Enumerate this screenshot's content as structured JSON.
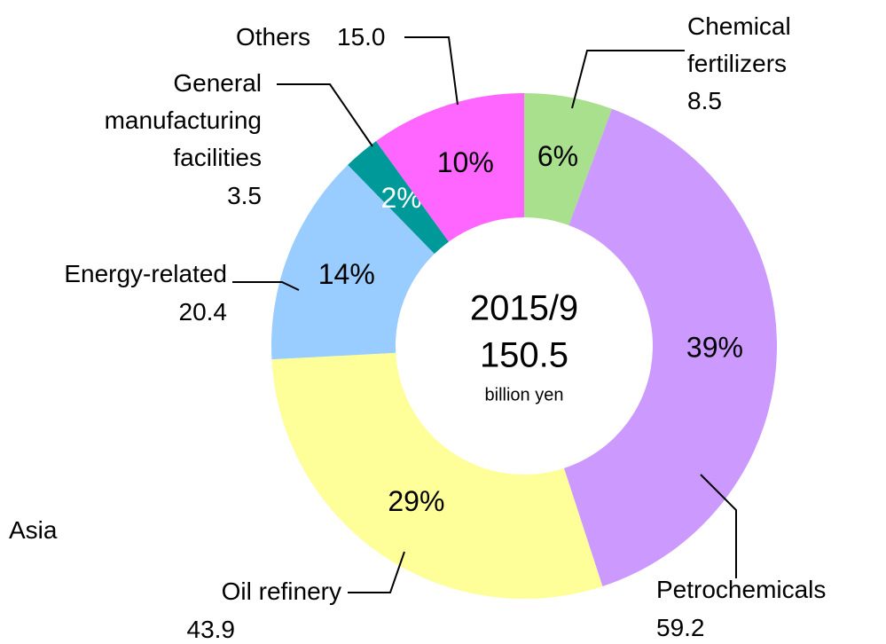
{
  "chart_data": {
    "type": "donut",
    "categories": [
      "Chemical fertilizers",
      "Petrochemicals",
      "Oil refinery",
      "Energy-related",
      "General manufacturing facilities",
      "Others"
    ],
    "values": [
      8.5,
      59.2,
      43.9,
      20.4,
      3.5,
      15.0
    ],
    "value_labels": [
      "8.5",
      "59.2",
      "43.9",
      "20.4",
      "3.5",
      "15.0"
    ],
    "percent_labels": [
      "6%",
      "39%",
      "29%",
      "14%",
      "2%",
      "10%"
    ],
    "colors": [
      "#a9e08d",
      "#cc99ff",
      "#ffff99",
      "#99ccff",
      "#009999",
      "#ff66ff"
    ],
    "center_title": "2015/9",
    "total": 150.5,
    "unit": "billion yen",
    "annotation": "Asia"
  }
}
